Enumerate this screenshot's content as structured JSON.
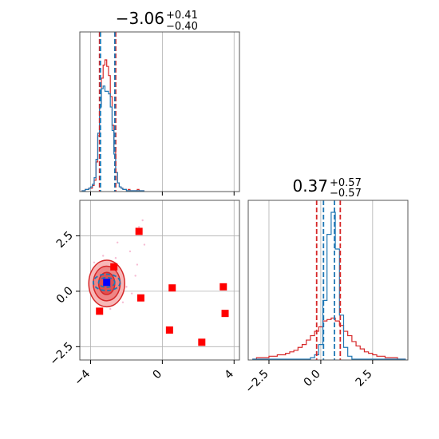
{
  "chart_data": {
    "type": "corner",
    "titles": [
      {
        "value": "−3.06",
        "plus": "+0.41",
        "minus": "−0.40"
      },
      {
        "value": "0.37",
        "plus": "+0.57",
        "minus": "−0.57"
      }
    ],
    "axes": {
      "x0": {
        "range": [
          -4.6,
          4.3
        ],
        "ticks": [
          -4,
          0,
          4
        ],
        "tick_labels": [
          "−4",
          "0",
          "4"
        ]
      },
      "x1": {
        "range": [
          -3.5,
          4.2
        ],
        "ticks": [
          -2.5,
          0.0,
          2.5
        ],
        "tick_labels": [
          "−2.5",
          "0.0",
          "2.5"
        ]
      },
      "y1": {
        "range": [
          -3.1,
          4.1
        ],
        "ticks": [
          -2.5,
          0.0,
          2.5
        ],
        "tick_labels": [
          "−2.5",
          "0.0",
          "2.5"
        ]
      }
    },
    "grid": true,
    "colors": {
      "red": "#d62728",
      "blue": "#1f77b4",
      "grid": "#b0b0b0",
      "frame": "#555555",
      "marker_red": "#ff0000",
      "marker_blue": "#0000ff"
    },
    "panel_00": {
      "quantiles_red": [
        -3.5,
        -2.6
      ],
      "quantiles_blue": [
        -3.45,
        -2.65
      ],
      "bins": [
        -4.5,
        -4.4,
        -4.3,
        -4.2,
        -4.1,
        -4.0,
        -3.9,
        -3.8,
        -3.7,
        -3.6,
        -3.5,
        -3.4,
        -3.3,
        -3.2,
        -3.1,
        -3.0,
        -2.9,
        -2.8,
        -2.7,
        -2.6,
        -2.5,
        -2.4,
        -2.3,
        -2.2,
        -2.1,
        -2.0,
        -1.9,
        -1.8,
        -1.7,
        -1.6,
        -1.5,
        -1.4,
        -1.3,
        -1.2,
        -1.1,
        -1.0
      ],
      "red_hist": [
        0,
        0,
        1,
        1,
        2,
        2,
        4,
        8,
        22,
        42,
        66,
        86,
        96,
        100,
        95,
        88,
        72,
        50,
        30,
        14,
        6,
        3,
        2,
        1,
        1,
        0,
        1,
        0,
        0,
        0,
        0,
        1,
        0,
        0,
        0
      ],
      "blue_hist": [
        0,
        0,
        1,
        1,
        2,
        3,
        5,
        10,
        24,
        44,
        64,
        78,
        80,
        76,
        76,
        74,
        64,
        46,
        28,
        14,
        6,
        3,
        2,
        1,
        1,
        0,
        0,
        0,
        0,
        0,
        0,
        0,
        0,
        0,
        0
      ]
    },
    "panel_11": {
      "quantiles_red": [
        -0.2,
        0.94
      ],
      "quantiles_blue": [
        0.13,
        0.66
      ],
      "bins": [
        -3.3,
        -3.1,
        -2.9,
        -2.7,
        -2.5,
        -2.3,
        -2.1,
        -1.9,
        -1.7,
        -1.5,
        -1.3,
        -1.1,
        -0.9,
        -0.7,
        -0.5,
        -0.3,
        -0.1,
        0.1,
        0.3,
        0.5,
        0.7,
        0.9,
        1.1,
        1.3,
        1.5,
        1.7,
        1.9,
        2.1,
        2.3,
        2.5,
        2.7,
        2.9,
        3.1,
        3.3,
        3.5,
        3.7,
        3.9,
        4.1
      ],
      "red_hist": [
        0,
        1,
        1,
        1,
        2,
        2,
        3,
        3,
        4,
        5,
        6,
        8,
        10,
        13,
        16,
        19,
        22,
        26,
        27,
        28,
        26,
        23,
        19,
        16,
        12,
        9,
        7,
        5,
        4,
        3,
        2,
        2,
        1,
        1,
        1,
        0,
        0
      ],
      "blue_hist": [
        0,
        0,
        0,
        0,
        0,
        0,
        0,
        0,
        0,
        0,
        0,
        0,
        0,
        0,
        1,
        3,
        10,
        40,
        85,
        100,
        75,
        30,
        8,
        2,
        0,
        0,
        0,
        0,
        0,
        0,
        0,
        0,
        0,
        0,
        0,
        0,
        0
      ]
    },
    "panel_10": {
      "red_contours": [
        {
          "cx": -3.1,
          "cy": 0.35,
          "rx": 1.0,
          "ry": 1.05
        },
        {
          "cx": -3.1,
          "cy": 0.35,
          "rx": 0.75,
          "ry": 0.78
        },
        {
          "cx": -3.1,
          "cy": 0.35,
          "rx": 0.45,
          "ry": 0.5
        }
      ],
      "blue_contours": [
        {
          "cx": -3.1,
          "cy": 0.4,
          "rx": 0.75,
          "ry": 0.37
        },
        {
          "cx": -3.1,
          "cy": 0.4,
          "rx": 0.45,
          "ry": 0.22
        }
      ],
      "red_markers": [
        [
          -1.3,
          2.7
        ],
        [
          -2.7,
          1.1
        ],
        [
          -3.5,
          -0.9
        ],
        [
          -1.2,
          -0.3
        ],
        [
          0.55,
          0.15
        ],
        [
          3.4,
          0.2
        ],
        [
          3.5,
          -1.0
        ],
        [
          0.4,
          -1.75
        ],
        [
          2.2,
          -2.3
        ]
      ],
      "blue_marker": [
        -3.1,
        0.4
      ],
      "scatter_points": [
        [
          -1.1,
          3.2
        ],
        [
          -1.0,
          2.1
        ],
        [
          -1.3,
          2.9
        ],
        [
          -2.6,
          1.5
        ],
        [
          -3.5,
          -0.95
        ],
        [
          -2.3,
          0.9
        ],
        [
          -2.0,
          0.2
        ],
        [
          -1.5,
          0.7
        ],
        [
          -3.8,
          1.3
        ],
        [
          -2.9,
          -0.8
        ],
        [
          -1.8,
          1.8
        ],
        [
          -2.2,
          -0.5
        ],
        [
          -1.7,
          -0.1
        ],
        [
          -3.3,
          1.6
        ],
        [
          -2.5,
          2.2
        ],
        [
          -1.4,
          1.2
        ]
      ]
    }
  }
}
